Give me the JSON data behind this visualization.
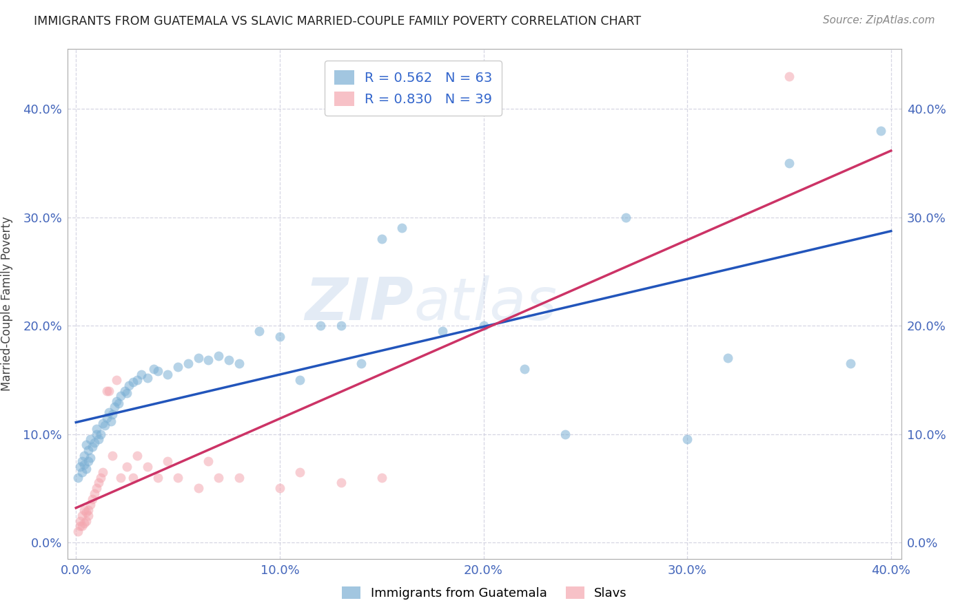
{
  "title": "IMMIGRANTS FROM GUATEMALA VS SLAVIC MARRIED-COUPLE FAMILY POVERTY CORRELATION CHART",
  "source": "Source: ZipAtlas.com",
  "ylabel": "Married-Couple Family Poverty",
  "legend_blue_r": "R = 0.562",
  "legend_blue_n": "N = 63",
  "legend_pink_r": "R = 0.830",
  "legend_pink_n": "N = 39",
  "legend_blue_label": "Immigrants from Guatemala",
  "legend_pink_label": "Slavs",
  "blue_color": "#7BAFD4",
  "pink_color": "#F4A7B0",
  "blue_line_color": "#2255BB",
  "pink_line_color": "#CC3366",
  "watermark_zip": "ZIP",
  "watermark_atlas": "atlas",
  "blue_x": [
    0.001,
    0.002,
    0.003,
    0.003,
    0.004,
    0.004,
    0.005,
    0.005,
    0.006,
    0.006,
    0.007,
    0.007,
    0.008,
    0.009,
    0.01,
    0.01,
    0.011,
    0.012,
    0.013,
    0.014,
    0.015,
    0.016,
    0.017,
    0.018,
    0.019,
    0.02,
    0.021,
    0.022,
    0.024,
    0.025,
    0.026,
    0.028,
    0.03,
    0.032,
    0.035,
    0.038,
    0.04,
    0.045,
    0.05,
    0.055,
    0.06,
    0.065,
    0.07,
    0.075,
    0.08,
    0.09,
    0.1,
    0.11,
    0.12,
    0.13,
    0.14,
    0.15,
    0.16,
    0.18,
    0.2,
    0.22,
    0.24,
    0.27,
    0.3,
    0.32,
    0.35,
    0.38,
    0.395
  ],
  "blue_y": [
    0.06,
    0.07,
    0.065,
    0.075,
    0.072,
    0.08,
    0.068,
    0.09,
    0.075,
    0.085,
    0.078,
    0.095,
    0.088,
    0.092,
    0.1,
    0.105,
    0.095,
    0.1,
    0.11,
    0.108,
    0.115,
    0.12,
    0.112,
    0.118,
    0.125,
    0.13,
    0.128,
    0.135,
    0.14,
    0.138,
    0.145,
    0.148,
    0.15,
    0.155,
    0.152,
    0.16,
    0.158,
    0.155,
    0.162,
    0.165,
    0.17,
    0.168,
    0.172,
    0.168,
    0.165,
    0.195,
    0.19,
    0.15,
    0.2,
    0.2,
    0.165,
    0.28,
    0.29,
    0.195,
    0.2,
    0.16,
    0.1,
    0.3,
    0.095,
    0.17,
    0.35,
    0.165,
    0.38
  ],
  "pink_x": [
    0.001,
    0.002,
    0.002,
    0.003,
    0.003,
    0.004,
    0.004,
    0.005,
    0.005,
    0.006,
    0.006,
    0.007,
    0.008,
    0.009,
    0.01,
    0.011,
    0.012,
    0.013,
    0.015,
    0.016,
    0.018,
    0.02,
    0.022,
    0.025,
    0.028,
    0.03,
    0.035,
    0.04,
    0.045,
    0.05,
    0.06,
    0.065,
    0.07,
    0.08,
    0.1,
    0.11,
    0.13,
    0.15,
    0.35
  ],
  "pink_y": [
    0.01,
    0.015,
    0.02,
    0.015,
    0.025,
    0.018,
    0.03,
    0.02,
    0.028,
    0.025,
    0.03,
    0.035,
    0.04,
    0.045,
    0.05,
    0.055,
    0.06,
    0.065,
    0.14,
    0.14,
    0.08,
    0.15,
    0.06,
    0.07,
    0.06,
    0.08,
    0.07,
    0.06,
    0.075,
    0.06,
    0.05,
    0.075,
    0.06,
    0.06,
    0.05,
    0.065,
    0.055,
    0.06,
    0.43
  ],
  "xlim": [
    0.0,
    0.4
  ],
  "ylim": [
    0.0,
    0.45
  ],
  "xtick_vals": [
    0.0,
    0.1,
    0.2,
    0.3,
    0.4
  ],
  "ytick_vals": [
    0.0,
    0.1,
    0.2,
    0.3,
    0.4
  ]
}
